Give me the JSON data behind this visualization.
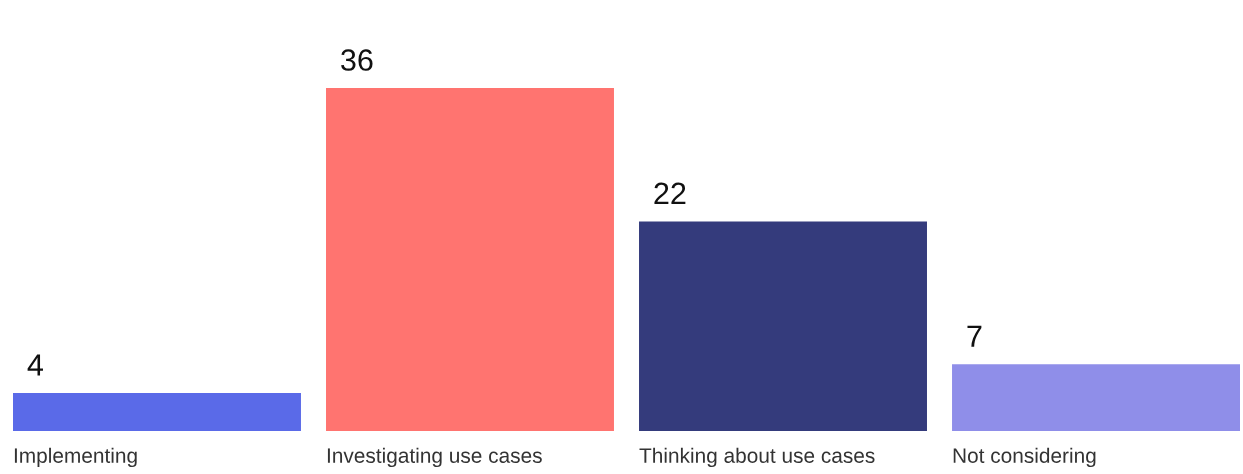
{
  "chart_data": {
    "type": "bar",
    "categories": [
      "Implementing",
      "Investigating use cases",
      "Thinking about use cases",
      "Not considering"
    ],
    "values": [
      4,
      36,
      22,
      7
    ],
    "colors": [
      "#5a6ae8",
      "#ff7470",
      "#343b7c",
      "#8f8ee9"
    ],
    "data_labels": true
  }
}
